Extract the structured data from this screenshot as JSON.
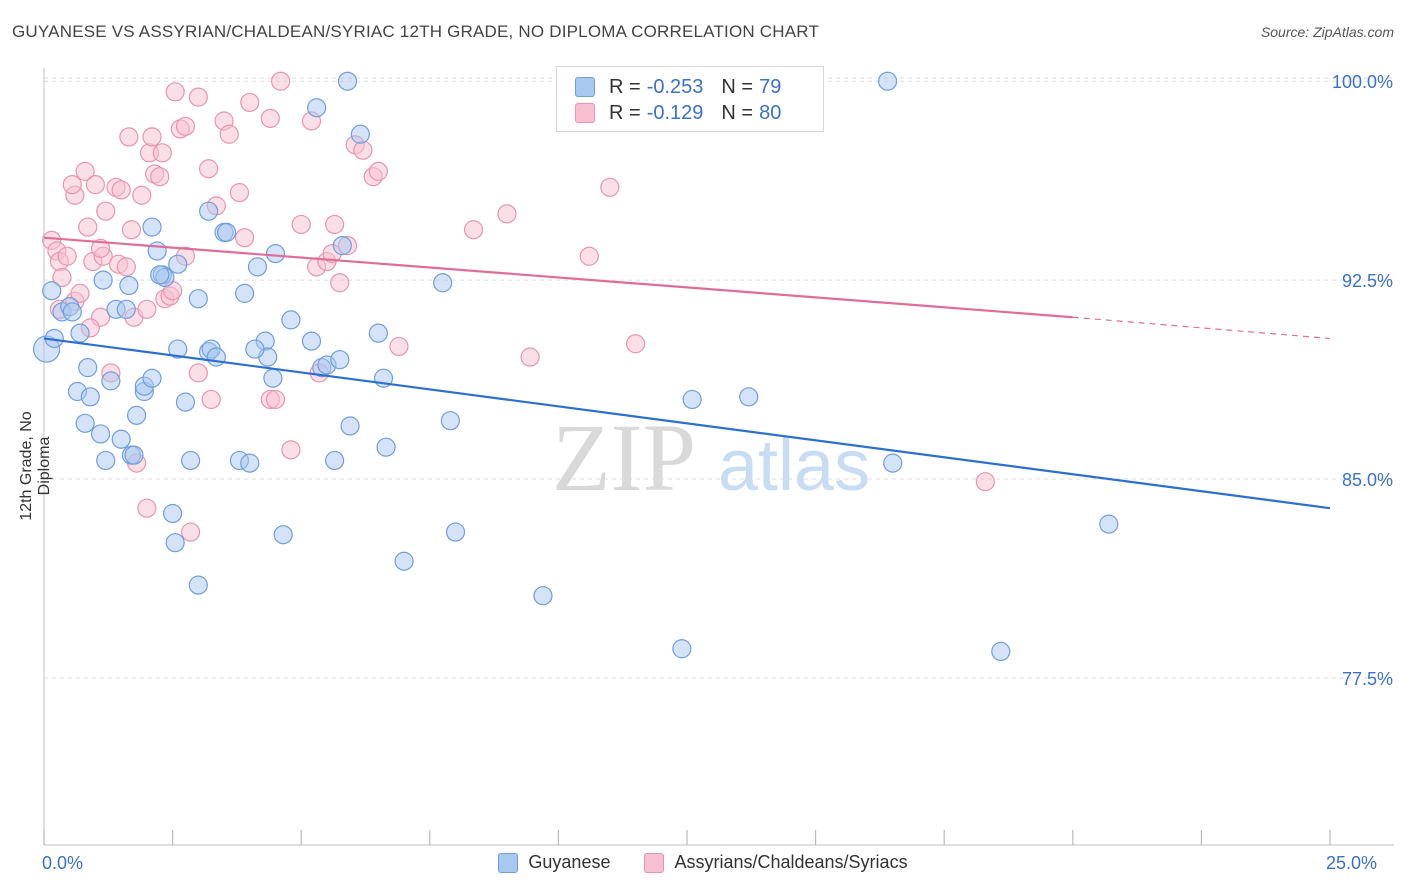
{
  "title": "GUYANESE VS ASSYRIAN/CHALDEAN/SYRIAC 12TH GRADE, NO DIPLOMA CORRELATION CHART",
  "source": "Source: ZipAtlas.com",
  "watermark": {
    "zip": "ZIP",
    "atlas": "atlas"
  },
  "legend_top": {
    "rows": [
      {
        "r_label": "R =",
        "r_value": "-0.253",
        "n_label": "N =",
        "n_value": "79"
      },
      {
        "r_label": "R =",
        "r_value": "-0.129",
        "n_label": "N =",
        "n_value": "80"
      }
    ]
  },
  "legend_bottom": [
    "Guyanese",
    "Assyrians/Chaldeans/Syriacs"
  ],
  "colors": {
    "blue_fill": "#a9c8f0",
    "blue_stroke": "#6f9fdc",
    "blue_line": "#2b6fd1",
    "pink_fill": "#f7bfd0",
    "pink_stroke": "#ea94b1",
    "pink_line": "#e06d97",
    "tick_label": "#3a72c8",
    "grid": "#dddddd"
  },
  "chart_data": {
    "type": "scatter",
    "title": "GUYANESE VS ASSYRIAN/CHALDEAN/SYRIAC 12TH GRADE, NO DIPLOMA CORRELATION CHART",
    "xlabel": "",
    "ylabel": "12th Grade, No Diploma",
    "xlim": [
      0,
      25
    ],
    "ylim": [
      71.2,
      100.8
    ],
    "x_tick_labels": [
      "0.0%",
      "25.0%"
    ],
    "y_ticks": [
      77.5,
      85.0,
      92.5,
      100.0
    ],
    "y_tick_labels": [
      "77.5%",
      "85.0%",
      "92.5%",
      "100.0%"
    ],
    "grid": true,
    "legend_placement": "top-center",
    "series": [
      {
        "name": "Guyanese",
        "r": -0.253,
        "n": 79,
        "trend": {
          "x": [
            0,
            25
          ],
          "y": [
            90.3,
            83.9
          ]
        },
        "points": [
          [
            0.15,
            92.1
          ],
          [
            0.2,
            90.3
          ],
          [
            0.35,
            91.3
          ],
          [
            0.5,
            91.5
          ],
          [
            0.55,
            91.3
          ],
          [
            0.7,
            90.5
          ],
          [
            0.85,
            89.2
          ],
          [
            0.65,
            88.3
          ],
          [
            0.9,
            88.1
          ],
          [
            0.8,
            87.1
          ],
          [
            1.1,
            86.7
          ],
          [
            1.2,
            85.7
          ],
          [
            1.5,
            86.5
          ],
          [
            1.7,
            85.9
          ],
          [
            1.15,
            92.5
          ],
          [
            1.4,
            91.4
          ],
          [
            1.6,
            91.4
          ],
          [
            1.65,
            92.3
          ],
          [
            1.3,
            88.7
          ],
          [
            1.8,
            87.4
          ],
          [
            1.95,
            88.3
          ],
          [
            1.95,
            88.5
          ],
          [
            2.1,
            88.8
          ],
          [
            2.1,
            94.5
          ],
          [
            2.2,
            93.6
          ],
          [
            2.3,
            92.7
          ],
          [
            2.35,
            92.6
          ],
          [
            2.6,
            93.1
          ],
          [
            2.6,
            89.9
          ],
          [
            2.75,
            87.9
          ],
          [
            2.85,
            85.7
          ],
          [
            2.5,
            83.7
          ],
          [
            2.55,
            82.6
          ],
          [
            3.0,
            91.8
          ],
          [
            3.2,
            89.8
          ],
          [
            3.25,
            89.9
          ],
          [
            3.35,
            89.6
          ],
          [
            3.5,
            94.3
          ],
          [
            3.55,
            94.3
          ],
          [
            3.2,
            95.1
          ],
          [
            3.8,
            85.7
          ],
          [
            4.0,
            85.6
          ],
          [
            4.15,
            93.0
          ],
          [
            3.9,
            92.0
          ],
          [
            4.3,
            90.2
          ],
          [
            4.35,
            89.6
          ],
          [
            4.45,
            88.8
          ],
          [
            4.5,
            93.5
          ],
          [
            4.65,
            82.9
          ],
          [
            4.8,
            91.0
          ],
          [
            5.2,
            90.2
          ],
          [
            5.4,
            89.2
          ],
          [
            5.5,
            89.3
          ],
          [
            5.65,
            85.7
          ],
          [
            5.75,
            89.5
          ],
          [
            5.8,
            93.8
          ],
          [
            5.3,
            99.0
          ],
          [
            5.9,
            100.0
          ],
          [
            6.15,
            98.0
          ],
          [
            5.95,
            87.0
          ],
          [
            6.5,
            90.5
          ],
          [
            6.6,
            88.8
          ],
          [
            6.65,
            86.2
          ],
          [
            7.0,
            81.9
          ],
          [
            7.75,
            92.4
          ],
          [
            7.9,
            87.2
          ],
          [
            8.0,
            83.0
          ],
          [
            9.7,
            80.6
          ],
          [
            12.4,
            78.6
          ],
          [
            12.6,
            88.0
          ],
          [
            13.7,
            88.1
          ],
          [
            16.4,
            100.0
          ],
          [
            16.5,
            85.6
          ],
          [
            18.6,
            78.5
          ],
          [
            20.7,
            83.3
          ],
          [
            1.75,
            85.9
          ],
          [
            2.25,
            92.7
          ],
          [
            3.0,
            81.0
          ],
          [
            4.1,
            89.9
          ]
        ]
      },
      {
        "name": "Assyrians/Chaldeans/Syriacs",
        "r": -0.129,
        "n": 80,
        "trend": {
          "x": [
            0,
            20
          ],
          "y": [
            94.1,
            91.1
          ]
        },
        "trend_dashed": {
          "x": [
            20,
            25
          ],
          "y": [
            91.1,
            90.3
          ]
        },
        "points": [
          [
            0.15,
            94.0
          ],
          [
            0.25,
            93.6
          ],
          [
            0.3,
            93.2
          ],
          [
            0.35,
            92.6
          ],
          [
            0.45,
            93.4
          ],
          [
            0.3,
            91.4
          ],
          [
            0.6,
            95.7
          ],
          [
            0.55,
            96.1
          ],
          [
            0.6,
            91.7
          ],
          [
            0.8,
            96.6
          ],
          [
            0.85,
            94.5
          ],
          [
            0.95,
            93.2
          ],
          [
            1.0,
            96.1
          ],
          [
            1.1,
            91.1
          ],
          [
            0.9,
            90.7
          ],
          [
            1.15,
            93.4
          ],
          [
            1.2,
            95.1
          ],
          [
            1.3,
            89.0
          ],
          [
            1.4,
            96.0
          ],
          [
            1.5,
            95.9
          ],
          [
            1.45,
            93.1
          ],
          [
            1.6,
            93.0
          ],
          [
            1.65,
            97.9
          ],
          [
            1.7,
            94.4
          ],
          [
            1.75,
            91.1
          ],
          [
            1.8,
            85.6
          ],
          [
            1.9,
            95.7
          ],
          [
            2.0,
            91.4
          ],
          [
            2.05,
            97.3
          ],
          [
            2.1,
            97.9
          ],
          [
            2.15,
            96.5
          ],
          [
            2.25,
            96.4
          ],
          [
            2.3,
            97.3
          ],
          [
            2.35,
            91.8
          ],
          [
            2.45,
            91.9
          ],
          [
            2.5,
            92.1
          ],
          [
            2.55,
            99.6
          ],
          [
            2.65,
            98.2
          ],
          [
            2.75,
            98.3
          ],
          [
            2.75,
            93.4
          ],
          [
            2.85,
            83.0
          ],
          [
            3.0,
            99.4
          ],
          [
            3.2,
            96.7
          ],
          [
            3.25,
            88.0
          ],
          [
            3.35,
            95.3
          ],
          [
            3.5,
            98.5
          ],
          [
            3.6,
            98.0
          ],
          [
            3.8,
            95.8
          ],
          [
            3.9,
            94.1
          ],
          [
            4.0,
            99.2
          ],
          [
            4.4,
            98.6
          ],
          [
            4.4,
            88.0
          ],
          [
            4.5,
            88.0
          ],
          [
            4.6,
            100.0
          ],
          [
            4.8,
            86.1
          ],
          [
            5.0,
            94.6
          ],
          [
            5.2,
            98.5
          ],
          [
            5.3,
            93.0
          ],
          [
            5.35,
            89.0
          ],
          [
            5.5,
            93.2
          ],
          [
            5.6,
            93.5
          ],
          [
            5.65,
            94.6
          ],
          [
            5.75,
            92.4
          ],
          [
            5.9,
            93.8
          ],
          [
            6.05,
            97.6
          ],
          [
            6.2,
            97.4
          ],
          [
            6.4,
            96.4
          ],
          [
            6.5,
            96.6
          ],
          [
            6.9,
            90.0
          ],
          [
            8.35,
            94.4
          ],
          [
            9.0,
            95.0
          ],
          [
            9.45,
            89.6
          ],
          [
            10.6,
            93.4
          ],
          [
            11.0,
            96.0
          ],
          [
            11.5,
            90.1
          ],
          [
            18.3,
            84.9
          ],
          [
            2.0,
            83.9
          ],
          [
            1.1,
            93.7
          ],
          [
            0.7,
            92.0
          ],
          [
            3.0,
            89.0
          ]
        ]
      }
    ]
  }
}
